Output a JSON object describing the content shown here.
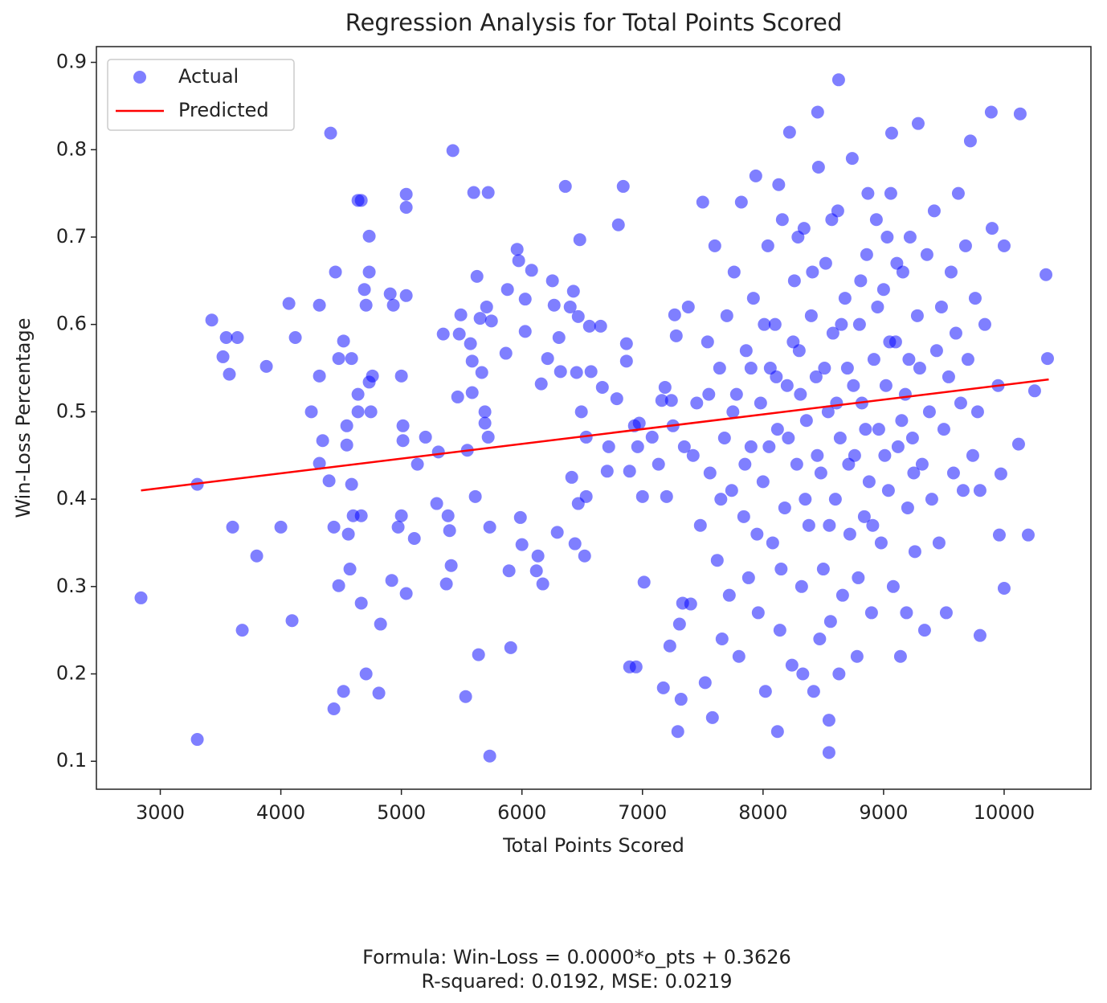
{
  "chart_data": {
    "type": "scatter",
    "title": "Regression Analysis for Total Points Scored",
    "x_label": "Total Points Scored",
    "y_label": "Win-Loss Percentage",
    "annotations": [
      "Formula: Win-Loss = 0.0000*o_pts + 0.3626",
      "R-squared: 0.0192, MSE: 0.0219"
    ],
    "legend": "upper left",
    "xlim": [
      2470,
      10720
    ],
    "ylim": [
      0.068,
      0.918
    ],
    "xticks": [
      3000,
      4000,
      5000,
      6000,
      7000,
      8000,
      9000,
      10000
    ],
    "yticks": [
      0.1,
      0.2,
      0.3,
      0.4,
      0.5,
      0.6,
      0.7,
      0.8,
      0.9
    ],
    "series": [
      {
        "name": "Actual",
        "type": "scatter",
        "color": "#0000ff",
        "x": [
          2840,
          3307,
          3307,
          3427,
          3520,
          3547,
          3573,
          3640,
          3600,
          3680,
          3800,
          3880,
          4000,
          4067,
          4093,
          4120,
          4253,
          4320,
          4320,
          4347,
          4320,
          4413,
          4400,
          4440,
          4440,
          4453,
          4480,
          4520,
          4480,
          4547,
          4547,
          4560,
          4520,
          4573,
          4587,
          4587,
          4600,
          4640,
          4640,
          4640,
          4667,
          4667,
          4667,
          4693,
          4707,
          4707,
          4733,
          4733,
          4747,
          4733,
          4760,
          4813,
          4827,
          4907,
          4920,
          4933,
          4973,
          5000,
          5000,
          5013,
          5013,
          5040,
          5040,
          5040,
          5040,
          5107,
          5133,
          5200,
          5293,
          5307,
          5347,
          5373,
          5387,
          5400,
          5413,
          5427,
          5467,
          5480,
          5493,
          5533,
          5547,
          5573,
          5587,
          5587,
          5600,
          5613,
          5627,
          5640,
          5653,
          5667,
          5693,
          5693,
          5707,
          5720,
          5720,
          5733,
          5733,
          5747,
          5867,
          5880,
          5893,
          5907,
          5960,
          5973,
          5987,
          6000,
          6027,
          6027,
          6080,
          6120,
          6133,
          6160,
          6173,
          6213,
          6253,
          6267,
          6293,
          6307,
          6320,
          6360,
          6400,
          6413,
          6427,
          6440,
          6453,
          6467,
          6467,
          6480,
          6493,
          6520,
          6533,
          6533,
          6560,
          6573,
          6653,
          6667,
          6707,
          6720,
          6787,
          6800,
          6840,
          6867,
          6867,
          6893,
          6893,
          6947,
          6933,
          6960,
          6973,
          7000,
          7013,
          7080,
          7133,
          7160,
          7173,
          7187,
          7200,
          7227,
          7240,
          7253,
          7267,
          7280,
          7293,
          7307,
          7320,
          7333,
          7347,
          7380,
          7400,
          7420,
          7450,
          7480,
          7500,
          7520,
          7540,
          7560,
          7580,
          7600,
          7620,
          7640,
          7660,
          7680,
          7700,
          7720,
          7740,
          7760,
          7780,
          7800,
          7820,
          7840,
          7860,
          7880,
          7900,
          7920,
          7940,
          7960,
          7980,
          8000,
          8020,
          8040,
          8060,
          8080,
          8100,
          8120,
          8140,
          8160,
          8180,
          8200,
          8220,
          8240,
          8260,
          8280,
          8300,
          8320,
          8340,
          8360,
          8380,
          8400,
          8420,
          8440,
          8460,
          8480,
          8500,
          8520,
          8540,
          8560,
          8580,
          8600,
          8620,
          8640,
          8660,
          8680,
          8700,
          8720,
          8740,
          8760,
          8780,
          8800,
          8820,
          8840,
          8860,
          8880,
          8900,
          8920,
          8940,
          8960,
          8980,
          9000,
          9020,
          9040,
          9060,
          9080,
          9100,
          9120,
          9140,
          9160,
          9180,
          9200,
          9220,
          9240,
          9260,
          9280,
          9300,
          9320,
          9340,
          9360,
          9380,
          9400,
          9420,
          9440,
          9460,
          9480,
          9500,
          9520,
          9540,
          9560,
          9580,
          9600,
          9620,
          9640,
          9660,
          9680,
          9700,
          9720,
          9740,
          9760,
          9780,
          9800,
          9840,
          9900,
          9950,
          10000,
          7900,
          7950,
          8010,
          8050,
          8110,
          8150,
          8210,
          8250,
          8310,
          8350,
          8410,
          8450,
          8510,
          8550,
          8610,
          8650,
          8710,
          8750,
          8810,
          8850,
          8910,
          8950,
          9010,
          9050,
          9110,
          9150,
          9210,
          9250,
          7850,
          7750,
          7650,
          7550,
          8330,
          8470,
          8630,
          8790,
          8130,
          8290,
          8570,
          8870,
          9030,
          9190,
          8627,
          8453,
          9893,
          10133,
          10347,
          10360,
          10253,
          10200,
          10000,
          9960,
          9800,
          9973,
          10120,
          8547,
          8547,
          8120,
          9287,
          9067
        ],
        "values": [
          0.287,
          0.125,
          0.417,
          0.605,
          0.563,
          0.585,
          0.543,
          0.585,
          0.368,
          0.25,
          0.335,
          0.552,
          0.368,
          0.624,
          0.261,
          0.585,
          0.5,
          0.622,
          0.541,
          0.467,
          0.441,
          0.819,
          0.421,
          0.368,
          0.16,
          0.66,
          0.301,
          0.581,
          0.561,
          0.484,
          0.462,
          0.36,
          0.18,
          0.32,
          0.561,
          0.417,
          0.381,
          0.52,
          0.5,
          0.742,
          0.742,
          0.381,
          0.281,
          0.64,
          0.622,
          0.2,
          0.66,
          0.534,
          0.5,
          0.701,
          0.541,
          0.178,
          0.257,
          0.635,
          0.307,
          0.622,
          0.368,
          0.381,
          0.541,
          0.484,
          0.467,
          0.633,
          0.292,
          0.749,
          0.734,
          0.355,
          0.44,
          0.471,
          0.395,
          0.454,
          0.589,
          0.303,
          0.381,
          0.364,
          0.324,
          0.799,
          0.517,
          0.589,
          0.611,
          0.174,
          0.456,
          0.578,
          0.558,
          0.522,
          0.751,
          0.403,
          0.655,
          0.222,
          0.607,
          0.545,
          0.487,
          0.5,
          0.62,
          0.751,
          0.471,
          0.106,
          0.368,
          0.604,
          0.567,
          0.64,
          0.318,
          0.23,
          0.686,
          0.673,
          0.379,
          0.348,
          0.592,
          0.629,
          0.662,
          0.318,
          0.335,
          0.532,
          0.303,
          0.561,
          0.65,
          0.622,
          0.362,
          0.585,
          0.546,
          0.758,
          0.62,
          0.425,
          0.638,
          0.349,
          0.545,
          0.609,
          0.395,
          0.697,
          0.5,
          0.335,
          0.403,
          0.471,
          0.598,
          0.546,
          0.598,
          0.528,
          0.432,
          0.46,
          0.515,
          0.714,
          0.758,
          0.578,
          0.558,
          0.432,
          0.208,
          0.208,
          0.484,
          0.46,
          0.487,
          0.403,
          0.305,
          0.471,
          0.44,
          0.513,
          0.184,
          0.528,
          0.403,
          0.232,
          0.513,
          0.484,
          0.611,
          0.587,
          0.134,
          0.257,
          0.171,
          0.281,
          0.46,
          0.62,
          0.28,
          0.45,
          0.51,
          0.37,
          0.74,
          0.19,
          0.58,
          0.43,
          0.15,
          0.69,
          0.33,
          0.55,
          0.24,
          0.47,
          0.61,
          0.29,
          0.41,
          0.66,
          0.52,
          0.22,
          0.74,
          0.38,
          0.57,
          0.31,
          0.46,
          0.63,
          0.77,
          0.27,
          0.51,
          0.42,
          0.18,
          0.69,
          0.55,
          0.35,
          0.6,
          0.48,
          0.25,
          0.72,
          0.39,
          0.53,
          0.82,
          0.21,
          0.65,
          0.44,
          0.57,
          0.3,
          0.71,
          0.49,
          0.37,
          0.61,
          0.18,
          0.54,
          0.78,
          0.43,
          0.32,
          0.67,
          0.5,
          0.26,
          0.59,
          0.4,
          0.73,
          0.47,
          0.29,
          0.63,
          0.55,
          0.36,
          0.79,
          0.45,
          0.22,
          0.6,
          0.51,
          0.38,
          0.68,
          0.42,
          0.27,
          0.56,
          0.72,
          0.48,
          0.35,
          0.64,
          0.53,
          0.41,
          0.75,
          0.3,
          0.58,
          0.46,
          0.22,
          0.66,
          0.52,
          0.39,
          0.7,
          0.47,
          0.34,
          0.61,
          0.55,
          0.44,
          0.25,
          0.68,
          0.5,
          0.4,
          0.73,
          0.57,
          0.35,
          0.62,
          0.48,
          0.27,
          0.54,
          0.66,
          0.43,
          0.59,
          0.75,
          0.51,
          0.41,
          0.69,
          0.56,
          0.81,
          0.45,
          0.63,
          0.5,
          0.41,
          0.6,
          0.71,
          0.53,
          0.69,
          0.55,
          0.36,
          0.6,
          0.46,
          0.54,
          0.32,
          0.47,
          0.58,
          0.52,
          0.4,
          0.66,
          0.45,
          0.55,
          0.37,
          0.51,
          0.6,
          0.44,
          0.53,
          0.65,
          0.48,
          0.37,
          0.62,
          0.45,
          0.58,
          0.67,
          0.49,
          0.56,
          0.43,
          0.44,
          0.5,
          0.4,
          0.52,
          0.2,
          0.24,
          0.2,
          0.31,
          0.76,
          0.7,
          0.72,
          0.75,
          0.7,
          0.27,
          0.88,
          0.843,
          0.843,
          0.841,
          0.657,
          0.561,
          0.524,
          0.359,
          0.298,
          0.359,
          0.244,
          0.429,
          0.463,
          0.11,
          0.147,
          0.134,
          0.83,
          0.819
        ]
      },
      {
        "name": "Predicted",
        "type": "line",
        "color": "#ff0000",
        "x": [
          2840,
          10370
        ],
        "values": [
          0.41,
          0.537
        ]
      }
    ]
  }
}
